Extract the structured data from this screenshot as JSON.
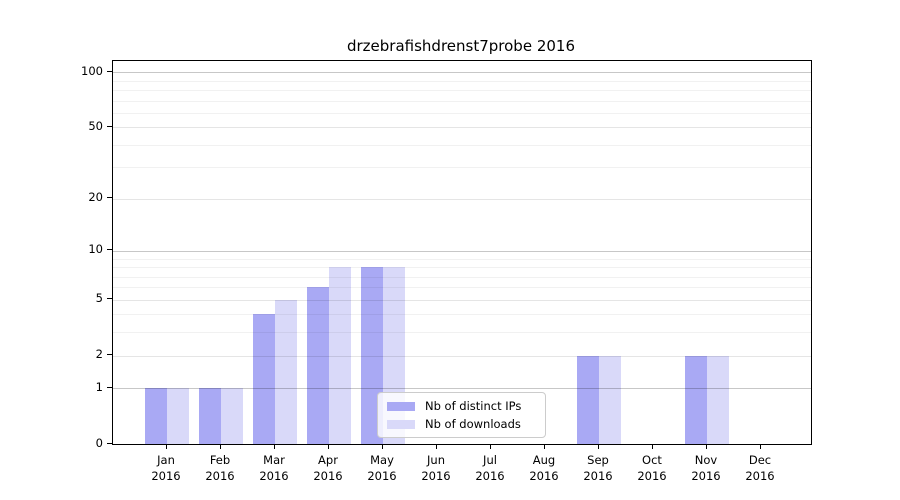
{
  "title": "drzebrafishdrenst7probe 2016",
  "chart_data": {
    "type": "bar",
    "title": "drzebrafishdrenst7probe 2016",
    "categories": [
      "Jan",
      "Feb",
      "Mar",
      "Apr",
      "May",
      "Jun",
      "Jul",
      "Aug",
      "Sep",
      "Oct",
      "Nov",
      "Dec"
    ],
    "category_year": "2016",
    "series": [
      {
        "name": "Nb of distinct IPs",
        "color": "#a9a9f4",
        "values": [
          1,
          1,
          4,
          6,
          8,
          0,
          0,
          0,
          2,
          0,
          2,
          0
        ]
      },
      {
        "name": "Nb of downloads",
        "color": "#d9d9f9",
        "values": [
          1,
          1,
          5,
          8,
          8,
          0,
          0,
          0,
          2,
          0,
          2,
          0
        ]
      }
    ],
    "scale": "log1p",
    "ylim": [
      0,
      115
    ],
    "y_major_ticks": [
      0,
      1,
      2,
      5,
      10,
      20,
      50,
      100
    ],
    "y_decade_ticks": [
      1,
      10,
      100
    ],
    "y_minor_gridlines": [
      3,
      4,
      6,
      7,
      8,
      9,
      30,
      40,
      60,
      70,
      80,
      90
    ],
    "grid": "on",
    "legend_position": "lower center (inside plot)"
  },
  "colors": {
    "axis": "#000000",
    "grid_decade": "#c9c9c9",
    "grid_submajor": "#e4e4e4",
    "grid_minor": "#f0f0f0",
    "legend_border": "#cccccc",
    "background": "#ffffff"
  }
}
